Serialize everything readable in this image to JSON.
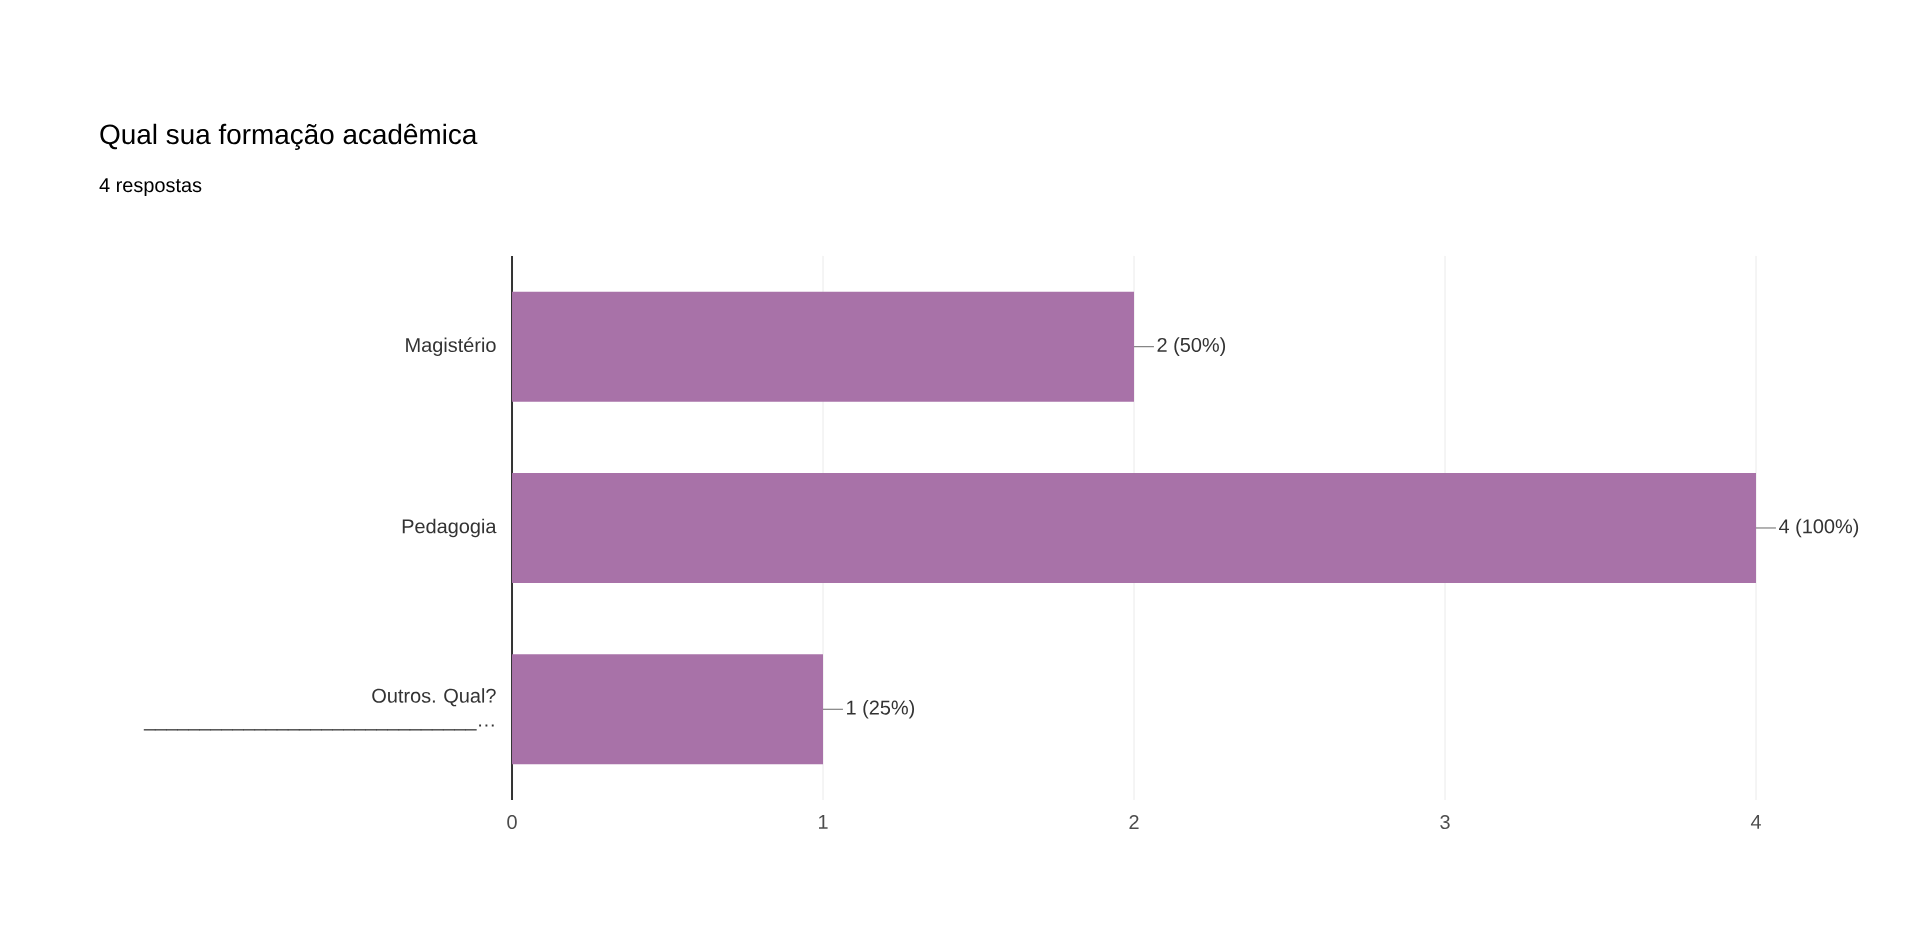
{
  "chart_data": {
    "type": "bar",
    "orientation": "horizontal",
    "title": "Qual sua formação acadêmica",
    "subtitle": "4 respostas",
    "categories": [
      "Magistério",
      "Pedagogia",
      "Outros. Qual? ______________________________…"
    ],
    "values": [
      2,
      4,
      1
    ],
    "value_labels": [
      "2 (50%)",
      "4 (100%)",
      "1 (25%)"
    ],
    "color": "#a872a8",
    "xlim": [
      0,
      4
    ],
    "xticks": [
      0,
      1,
      2,
      3,
      4
    ],
    "grid": "x"
  }
}
